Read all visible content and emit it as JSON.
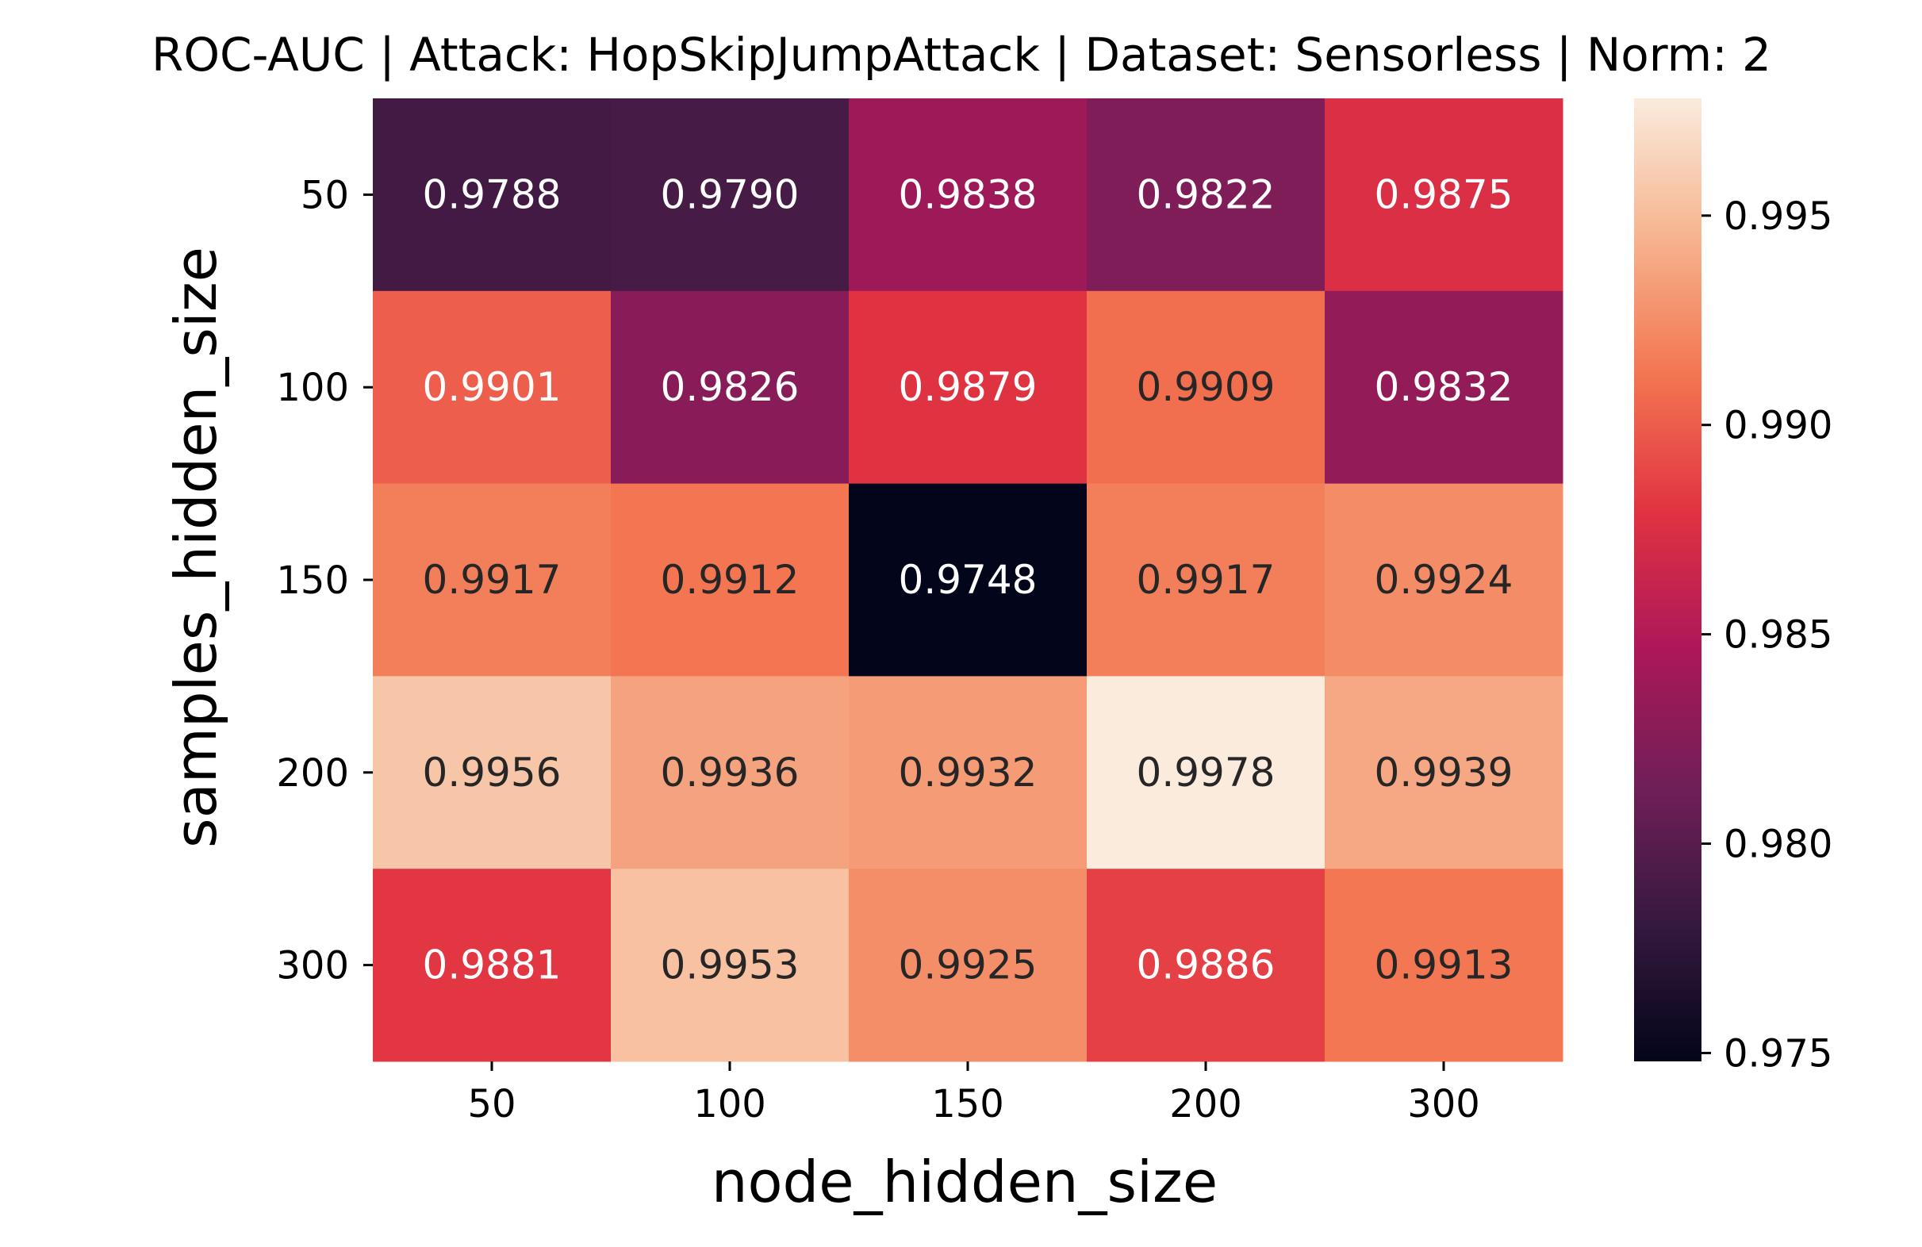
{
  "chart_data": {
    "type": "heatmap",
    "title": "ROC-AUC | Attack: HopSkipJumpAttack | Dataset: Sensorless | Norm: 2",
    "xlabel": "node_hidden_size",
    "ylabel": "samples_hidden_size",
    "x_categories": [
      "50",
      "100",
      "150",
      "200",
      "300"
    ],
    "y_categories": [
      "50",
      "100",
      "150",
      "200",
      "300"
    ],
    "values": [
      [
        0.9788,
        0.979,
        0.9838,
        0.9822,
        0.9875
      ],
      [
        0.9901,
        0.9826,
        0.9879,
        0.9909,
        0.9832
      ],
      [
        0.9917,
        0.9912,
        0.9748,
        0.9917,
        0.9924
      ],
      [
        0.9956,
        0.9936,
        0.9932,
        0.9978,
        0.9939
      ],
      [
        0.9881,
        0.9953,
        0.9925,
        0.9886,
        0.9913
      ]
    ],
    "value_format_decimals": 4,
    "colorbar": {
      "ticks": [
        "0.975",
        "0.980",
        "0.985",
        "0.990",
        "0.995"
      ],
      "tick_values": [
        0.975,
        0.98,
        0.985,
        0.99,
        0.995
      ],
      "vmin": 0.9748,
      "vmax": 0.9978
    },
    "colormap": "rocket",
    "colormap_stops": [
      "#03051a",
      "#36193e",
      "#701f57",
      "#ad1759",
      "#e13342",
      "#f37651",
      "#f6b48f",
      "#faebdd"
    ],
    "light_text_color": "#ffffff",
    "dark_text_color": "#262626",
    "grid": false,
    "legend": "colorbar-right"
  }
}
